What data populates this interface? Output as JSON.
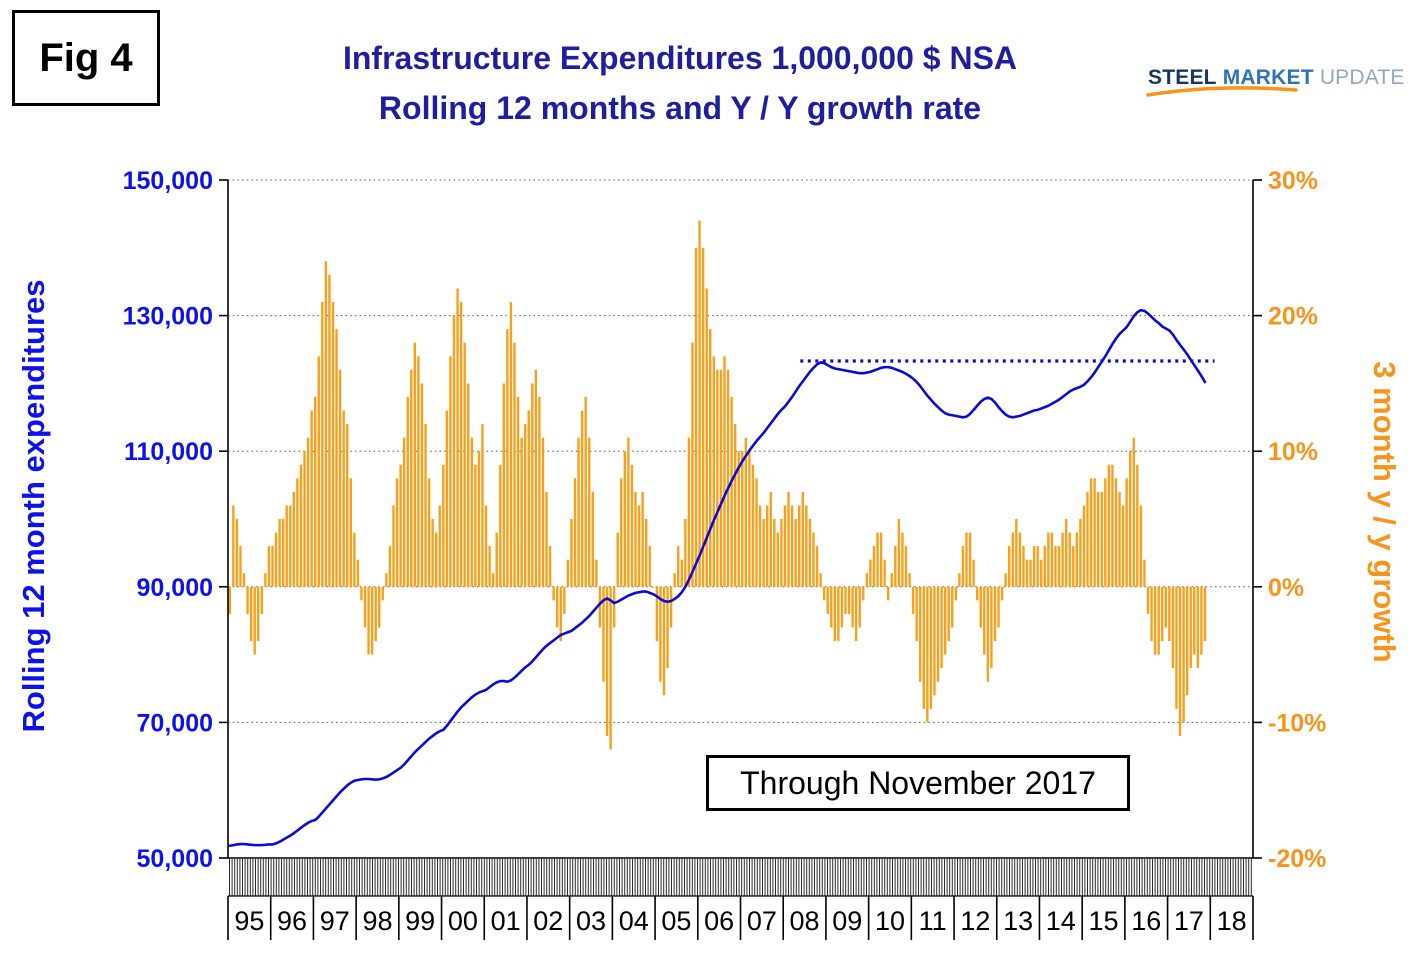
{
  "fig_label": "Fig 4",
  "title": {
    "line1": "Infrastructure Expenditures 1,000,000 $ NSA",
    "line2": "Rolling 12 months and Y / Y growth rate"
  },
  "logo": {
    "steel": "STEEL",
    "market": "MARKET",
    "update": "UPDATE"
  },
  "annotation": {
    "text": "Through November 2017"
  },
  "colors": {
    "title_blue": "#1F1F9E",
    "axis_blue": "#0D12E8",
    "line_blue": "#0B0BCF",
    "bar_orange": "#F7A01B",
    "axis_orange": "#F7941D",
    "grid": "#555555",
    "axis_black": "#000000"
  },
  "chart_data": {
    "type": "line+bar",
    "x_start_year": 1995,
    "years_labels": [
      "95",
      "96",
      "97",
      "98",
      "99",
      "00",
      "01",
      "02",
      "03",
      "04",
      "05",
      "06",
      "07",
      "08",
      "09",
      "10",
      "11",
      "12",
      "13",
      "14",
      "15",
      "16",
      "17",
      "18"
    ],
    "left_axis": {
      "title": "Rolling 12 month expenditures",
      "min": 50000,
      "max": 150000,
      "tick_values": [
        150000,
        130000,
        110000,
        90000,
        70000,
        50000
      ],
      "tick_labels": [
        "150,000",
        "130,000",
        "110,000",
        "90,000",
        "70,000",
        "50,000"
      ]
    },
    "right_axis": {
      "title": "3 month y / y growth",
      "min": -20,
      "max": 30,
      "tick_values": [
        30,
        20,
        10,
        0,
        -10,
        -20
      ],
      "tick_labels": [
        "30%",
        "20%",
        "10%",
        "0%",
        "-10%",
        "-20%"
      ]
    },
    "gridline_values": [
      150000,
      130000,
      110000,
      90000,
      70000
    ],
    "reference_line": {
      "value": 123300,
      "from_year": 2008.4,
      "to_year": 2018.1,
      "style": "dotted"
    },
    "bar_series": {
      "name": "3 month y/y growth (%)",
      "by_year": {
        "1995": [
          -2,
          6,
          5,
          3,
          1,
          -2,
          -4,
          -5,
          -4,
          -2,
          1,
          3
        ],
        "1996": [
          3,
          4,
          5,
          5,
          6,
          6,
          7,
          8,
          9,
          10,
          11,
          13
        ],
        "1997": [
          14,
          17,
          21,
          24,
          23,
          21,
          19,
          16,
          13,
          12,
          8,
          4
        ],
        "1998": [
          2,
          -1,
          -3,
          -5,
          -5,
          -4,
          -3,
          -1,
          1,
          3,
          6,
          8
        ],
        "1999": [
          9,
          11,
          14,
          16,
          18,
          17,
          15,
          12,
          8,
          5,
          4,
          6
        ],
        "2000": [
          9,
          13,
          17,
          20,
          22,
          21,
          18,
          15,
          11,
          9,
          10,
          12
        ],
        "2001": [
          6,
          3,
          1,
          4,
          9,
          15,
          19,
          21,
          18,
          14,
          11,
          12
        ],
        "2002": [
          13,
          15,
          16,
          14,
          11,
          7,
          3,
          -1,
          -3,
          -4,
          -2,
          2
        ],
        "2003": [
          5,
          8,
          11,
          13,
          14,
          11,
          7,
          2,
          -3,
          -7,
          -11,
          -12
        ],
        "2004": [
          -3,
          4,
          8,
          10,
          11,
          9,
          7,
          6,
          7,
          5,
          3,
          0
        ],
        "2005": [
          -4,
          -7,
          -8,
          -6,
          -3,
          1,
          3,
          2,
          5,
          11,
          18,
          25
        ],
        "2006": [
          27,
          25,
          22,
          19,
          17,
          16,
          16,
          17,
          16,
          14,
          12,
          10
        ],
        "2007": [
          10,
          11,
          10,
          9,
          8,
          6,
          5,
          6,
          7,
          5,
          4,
          5
        ],
        "2008": [
          6,
          7,
          6,
          5,
          6,
          7,
          6,
          5,
          4,
          3,
          1,
          -1
        ],
        "2009": [
          -2,
          -3,
          -4,
          -4,
          -3,
          -2,
          -2,
          -3,
          -4,
          -3,
          -1,
          1
        ],
        "2010": [
          2,
          3,
          4,
          4,
          2,
          -1,
          1,
          3,
          5,
          4,
          3,
          1
        ],
        "2011": [
          -2,
          -4,
          -7,
          -9,
          -10,
          -9,
          -8,
          -7,
          -6,
          -5,
          -4,
          -3
        ],
        "2012": [
          -1,
          1,
          3,
          4,
          4,
          2,
          -1,
          -3,
          -5,
          -7,
          -6,
          -4
        ],
        "2013": [
          -3,
          -1,
          1,
          3,
          4,
          5,
          4,
          3,
          2,
          2,
          3,
          3
        ],
        "2014": [
          2,
          3,
          4,
          4,
          3,
          3,
          4,
          5,
          4,
          3,
          4,
          5
        ],
        "2015": [
          6,
          7,
          8,
          8,
          7,
          7,
          8,
          9,
          9,
          8,
          7,
          6
        ],
        "2016": [
          8,
          10,
          11,
          9,
          6,
          2,
          -2,
          -4,
          -5,
          -5,
          -4,
          -3
        ],
        "2017": [
          -4,
          -6,
          -9,
          -11,
          -10,
          -8,
          -6,
          -5,
          -6,
          -5,
          -4
        ]
      }
    },
    "line_series": {
      "name": "Rolling 12 month expenditures (1,000,000 $ NSA)",
      "by_year": {
        "1995": [
          51800,
          51900,
          52000,
          52050,
          52050,
          52000,
          51950,
          51900,
          51900,
          51900,
          51950,
          52000
        ],
        "1996": [
          52000,
          52150,
          52400,
          52700,
          53000,
          53300,
          53650,
          54050,
          54450,
          54850,
          55200,
          55450
        ],
        "1997": [
          55600,
          56100,
          56700,
          57300,
          57900,
          58500,
          59100,
          59700,
          60200,
          60700,
          61100,
          61400
        ],
        "1998": [
          61500,
          61600,
          61650,
          61650,
          61600,
          61550,
          61600,
          61750,
          61950,
          62250,
          62600,
          62950
        ],
        "1999": [
          63300,
          63800,
          64400,
          65000,
          65600,
          66100,
          66600,
          67100,
          67600,
          68000,
          68400,
          68700
        ],
        "2000": [
          68900,
          69500,
          70200,
          70900,
          71600,
          72200,
          72700,
          73200,
          73700,
          74100,
          74400,
          74600
        ],
        "2001": [
          74800,
          75200,
          75600,
          75900,
          76100,
          76100,
          76000,
          76200,
          76600,
          77100,
          77600,
          78100
        ],
        "2002": [
          78500,
          79000,
          79600,
          80200,
          80800,
          81300,
          81700,
          82100,
          82500,
          82900,
          83100,
          83300
        ],
        "2003": [
          83500,
          83900,
          84300,
          84700,
          85200,
          85700,
          86300,
          86900,
          87500,
          88000,
          88300,
          88000
        ],
        "2004": [
          87600,
          87800,
          88100,
          88400,
          88700,
          88900,
          89100,
          89200,
          89300,
          89300,
          89100,
          88900
        ],
        "2005": [
          88600,
          88200,
          87900,
          87800,
          87900,
          88200,
          88600,
          89200,
          90000,
          91000,
          92200,
          93400
        ],
        "2006": [
          94600,
          95900,
          97200,
          98500,
          99800,
          101000,
          102200,
          103400,
          104500,
          105600,
          106600,
          107600
        ],
        "2007": [
          108500,
          109300,
          110100,
          110800,
          111500,
          112100,
          112700,
          113400,
          114100,
          114800,
          115500,
          116100
        ],
        "2008": [
          116600,
          117300,
          118000,
          118800,
          119600,
          120300,
          121000,
          121700,
          122300,
          122800,
          123100,
          123000
        ],
        "2009": [
          122700,
          122400,
          122200,
          122100,
          122000,
          121900,
          121800,
          121700,
          121600,
          121500,
          121500,
          121600
        ],
        "2010": [
          121700,
          121900,
          122100,
          122300,
          122400,
          122400,
          122300,
          122100,
          121900,
          121700,
          121400,
          121100
        ],
        "2011": [
          120700,
          120200,
          119600,
          118900,
          118200,
          117600,
          117000,
          116500,
          116000,
          115600,
          115400,
          115300
        ],
        "2012": [
          115200,
          115100,
          115000,
          115100,
          115500,
          116100,
          116700,
          117300,
          117700,
          117900,
          117700,
          117200
        ],
        "2013": [
          116500,
          115900,
          115400,
          115100,
          115000,
          115100,
          115200,
          115400,
          115600,
          115800,
          116000,
          116100
        ],
        "2014": [
          116300,
          116500,
          116700,
          117000,
          117300,
          117600,
          118000,
          118400,
          118800,
          119100,
          119300,
          119500
        ],
        "2015": [
          119800,
          120300,
          120900,
          121600,
          122400,
          123200,
          124000,
          124900,
          125800,
          126600,
          127300,
          127800
        ],
        "2016": [
          128300,
          129100,
          129900,
          130500,
          130800,
          130700,
          130300,
          129800,
          129300,
          128900,
          128400,
          128100
        ],
        "2017": [
          127800,
          127200,
          126400,
          125700,
          125000,
          124300,
          123500,
          122700,
          121900,
          121100,
          120200
        ]
      }
    }
  }
}
